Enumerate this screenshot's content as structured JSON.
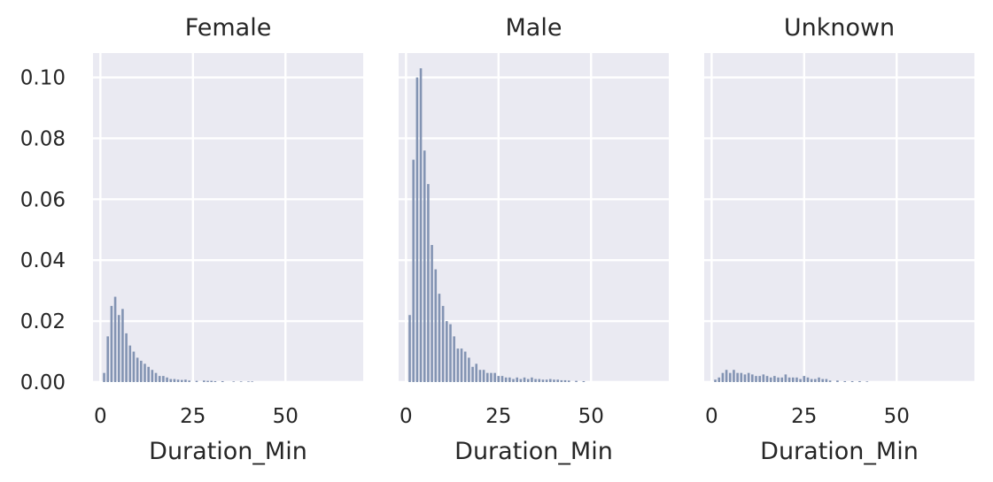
{
  "chart_data": {
    "type": "bar",
    "layout": "facet-columns",
    "shared_y": true,
    "grid": true,
    "bar_color": "#8394b3",
    "panel_background": "#eaeaf2",
    "bin_width": 1,
    "xlim": [
      -2,
      71
    ],
    "ylim": [
      0,
      0.108
    ],
    "xticks": [
      0,
      25,
      50
    ],
    "xtick_labels": [
      "0",
      "25",
      "50"
    ],
    "yticks": [
      0,
      0.02,
      0.04,
      0.06,
      0.08,
      0.1
    ],
    "ytick_labels": [
      "0.00",
      "0.02",
      "0.04",
      "0.06",
      "0.08",
      "0.10"
    ],
    "panels": [
      {
        "title": "Female",
        "xlabel": "Duration_Min",
        "x": [
          1,
          2,
          3,
          4,
          5,
          6,
          7,
          8,
          9,
          10,
          11,
          12,
          13,
          14,
          15,
          16,
          17,
          18,
          19,
          20,
          21,
          22,
          23,
          24,
          26,
          28,
          29,
          30,
          31,
          33,
          36,
          38,
          40,
          41
        ],
        "values": [
          0.003,
          0.015,
          0.025,
          0.028,
          0.022,
          0.024,
          0.016,
          0.012,
          0.01,
          0.008,
          0.007,
          0.006,
          0.005,
          0.004,
          0.003,
          0.002,
          0.002,
          0.0015,
          0.001,
          0.001,
          0.0008,
          0.0007,
          0.0008,
          0.0005,
          0.0004,
          0.0005,
          0.0004,
          0.0004,
          0.0003,
          0.0003,
          0.0002,
          0.0002,
          0.0002,
          0.0002
        ]
      },
      {
        "title": "Male",
        "xlabel": "Duration_Min",
        "x": [
          1,
          2,
          3,
          4,
          5,
          6,
          7,
          8,
          9,
          10,
          11,
          12,
          13,
          14,
          15,
          16,
          17,
          18,
          19,
          20,
          21,
          22,
          23,
          24,
          25,
          26,
          27,
          28,
          29,
          30,
          31,
          32,
          33,
          34,
          35,
          36,
          37,
          38,
          39,
          40,
          41,
          42,
          43,
          44,
          46,
          48
        ],
        "values": [
          0.022,
          0.073,
          0.1,
          0.103,
          0.076,
          0.065,
          0.045,
          0.037,
          0.029,
          0.025,
          0.02,
          0.019,
          0.015,
          0.011,
          0.011,
          0.01,
          0.008,
          0.005,
          0.006,
          0.004,
          0.004,
          0.003,
          0.003,
          0.003,
          0.002,
          0.002,
          0.0015,
          0.0015,
          0.001,
          0.0015,
          0.001,
          0.0015,
          0.001,
          0.0015,
          0.001,
          0.001,
          0.0008,
          0.0008,
          0.001,
          0.0008,
          0.0008,
          0.0006,
          0.0006,
          0.0005,
          0.0004,
          0.0003
        ]
      },
      {
        "title": "Unknown",
        "xlabel": "Duration_Min",
        "x": [
          1,
          2,
          3,
          4,
          5,
          6,
          7,
          8,
          9,
          10,
          11,
          12,
          13,
          14,
          15,
          16,
          17,
          18,
          19,
          20,
          21,
          22,
          23,
          24,
          25,
          26,
          27,
          28,
          29,
          30,
          31,
          32,
          34,
          36,
          38,
          40,
          42
        ],
        "values": [
          0.0008,
          0.0015,
          0.003,
          0.004,
          0.003,
          0.004,
          0.003,
          0.003,
          0.0025,
          0.003,
          0.0025,
          0.002,
          0.002,
          0.0025,
          0.002,
          0.0015,
          0.002,
          0.0015,
          0.0015,
          0.0025,
          0.0015,
          0.0015,
          0.0015,
          0.001,
          0.002,
          0.0015,
          0.001,
          0.001,
          0.0015,
          0.001,
          0.001,
          0.0005,
          0.0005,
          0.0003,
          0.0003,
          0.0003,
          0.0002
        ]
      }
    ]
  }
}
